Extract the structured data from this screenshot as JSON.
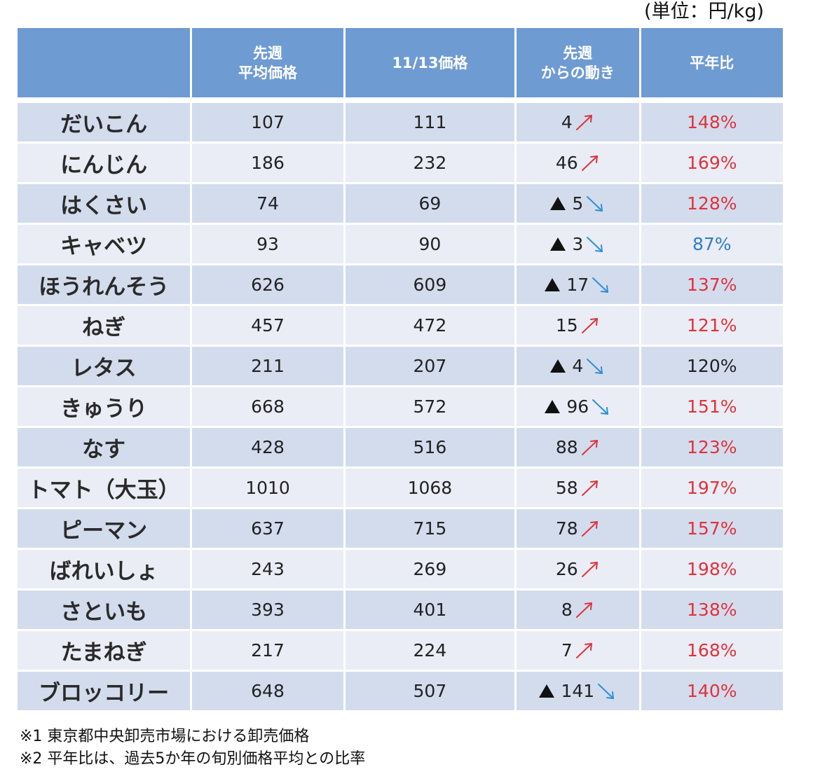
{
  "unit_label": "(単位：円/kg)",
  "table": {
    "headers": [
      "",
      "先週\n平均価格",
      "11/13価格",
      "先週\nからの動き",
      "平年比"
    ],
    "rows": [
      {
        "name": "だいこん",
        "last_week_avg": "107",
        "price_1113": "111",
        "change": "4",
        "direction": "up",
        "ratio": "148%",
        "ratio_color": "red"
      },
      {
        "name": "にんじん",
        "last_week_avg": "186",
        "price_1113": "232",
        "change": "46",
        "direction": "up",
        "ratio": "169%",
        "ratio_color": "red"
      },
      {
        "name": "はくさい",
        "last_week_avg": "74",
        "price_1113": "69",
        "change": "5",
        "direction": "down",
        "ratio": "128%",
        "ratio_color": "red"
      },
      {
        "name": "キャベツ",
        "last_week_avg": "93",
        "price_1113": "90",
        "change": "3",
        "direction": "down",
        "ratio": "87%",
        "ratio_color": "blue"
      },
      {
        "name": "ほうれんそう",
        "last_week_avg": "626",
        "price_1113": "609",
        "change": "17",
        "direction": "down",
        "ratio": "137%",
        "ratio_color": "red"
      },
      {
        "name": "ねぎ",
        "last_week_avg": "457",
        "price_1113": "472",
        "change": "15",
        "direction": "up",
        "ratio": "121%",
        "ratio_color": "red"
      },
      {
        "name": "レタス",
        "last_week_avg": "211",
        "price_1113": "207",
        "change": "4",
        "direction": "down",
        "ratio": "120%",
        "ratio_color": "black"
      },
      {
        "name": "きゅうり",
        "last_week_avg": "668",
        "price_1113": "572",
        "change": "96",
        "direction": "down",
        "ratio": "151%",
        "ratio_color": "red"
      },
      {
        "name": "なす",
        "last_week_avg": "428",
        "price_1113": "516",
        "change": "88",
        "direction": "up",
        "ratio": "123%",
        "ratio_color": "red"
      },
      {
        "name": "トマト（大玉）",
        "last_week_avg": "1010",
        "price_1113": "1068",
        "change": "58",
        "direction": "up",
        "ratio": "197%",
        "ratio_color": "red"
      },
      {
        "name": "ピーマン",
        "last_week_avg": "637",
        "price_1113": "715",
        "change": "78",
        "direction": "up",
        "ratio": "157%",
        "ratio_color": "red"
      },
      {
        "name": "ばれいしょ",
        "last_week_avg": "243",
        "price_1113": "269",
        "change": "26",
        "direction": "up",
        "ratio": "198%",
        "ratio_color": "red"
      },
      {
        "name": "さといも",
        "last_week_avg": "393",
        "price_1113": "401",
        "change": "8",
        "direction": "up",
        "ratio": "138%",
        "ratio_color": "red"
      },
      {
        "name": "たまねぎ",
        "last_week_avg": "217",
        "price_1113": "224",
        "change": "7",
        "direction": "up",
        "ratio": "168%",
        "ratio_color": "red"
      },
      {
        "name": "ブロッコリー",
        "last_week_avg": "648",
        "price_1113": "507",
        "change": "141",
        "direction": "down",
        "ratio": "140%",
        "ratio_color": "red"
      }
    ]
  },
  "notes": [
    "※1 東京都中央卸売市場における卸売価格",
    "※2 平年比は、過去5か年の旬別価格平均との比率"
  ],
  "colors": {
    "header_bg": "#6f9bd3",
    "row_dark": "#d3dced",
    "row_light": "#eaedf5",
    "ratio_red": "#e0323b",
    "ratio_blue": "#2f7fc4",
    "arrow_up": "#e0323b",
    "arrow_down": "#2f8fd8",
    "decrease_marker": "#111111"
  },
  "icons": {
    "up": "arrow-up-right-icon",
    "down": "arrow-down-right-icon",
    "decrease": "triangle-decrease-icon"
  }
}
